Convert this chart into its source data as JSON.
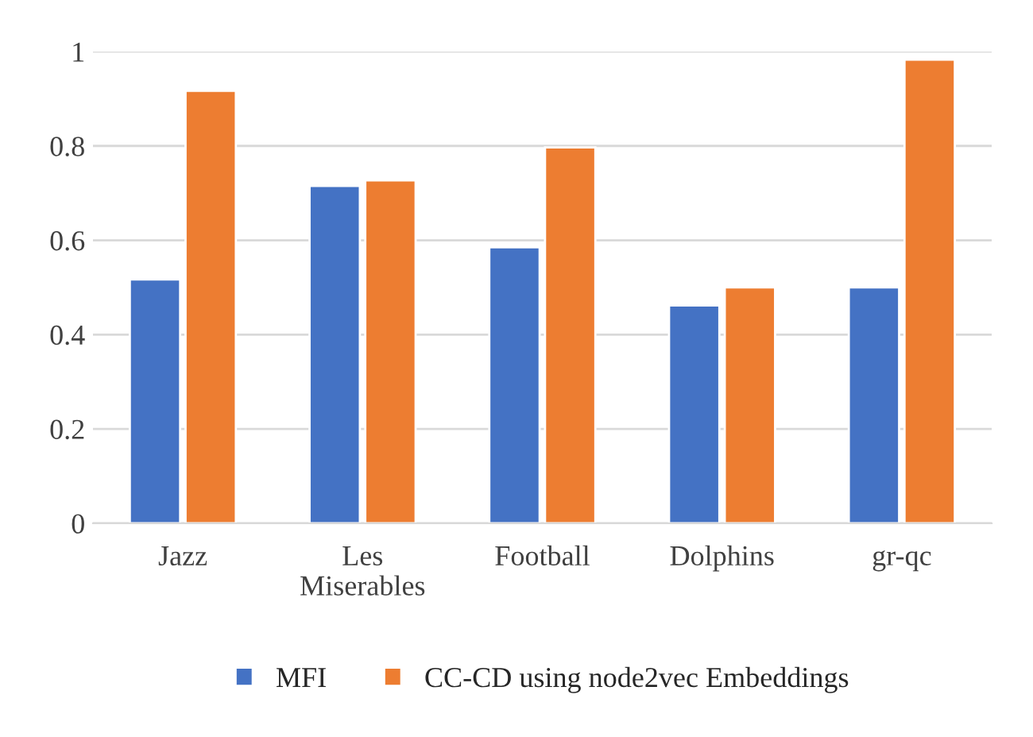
{
  "chart_data": {
    "type": "bar",
    "categories": [
      "Jazz",
      "Les Miserables",
      "Football",
      "Dolphins",
      "gr-qc"
    ],
    "series": [
      {
        "name": "MFI",
        "color": "#4472c4",
        "values": [
          0.517,
          0.715,
          0.585,
          0.462,
          0.5
        ]
      },
      {
        "name": "CC-CD using node2vec Embeddings",
        "color": "#ed7d31",
        "values": [
          0.917,
          0.727,
          0.797,
          0.5,
          0.983
        ]
      }
    ],
    "ylim": [
      0,
      1
    ],
    "yticks": [
      0,
      0.2,
      0.4,
      0.6,
      0.8,
      1
    ],
    "grid": "y",
    "legend": "bottom"
  }
}
